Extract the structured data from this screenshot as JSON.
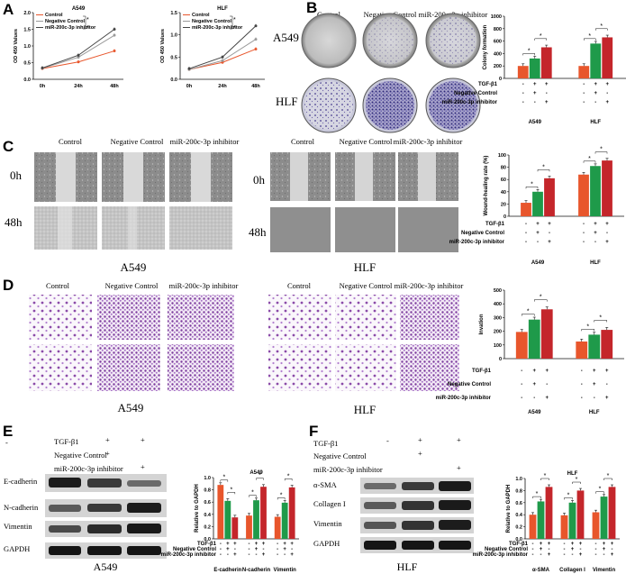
{
  "panels": {
    "A": "A",
    "B": "B",
    "C": "C",
    "D": "D",
    "E": "E",
    "F": "F"
  },
  "colors": {
    "control": "#e8562c",
    "negative_control": "#1f9a4a",
    "inhibitor": "#c4262b",
    "grey_line": "#9a9a9a"
  },
  "groups": {
    "control": "Control",
    "negative_control": "Negative Control",
    "inhibitor": "miR-200c-3p inhibitor"
  },
  "cells": {
    "a549": "A549",
    "hlf": "HLF"
  },
  "times": {
    "t0": "0h",
    "t48": "48h"
  },
  "tgf": "TGF-β1",
  "plus": "+",
  "minus": "-",
  "dash": "-",
  "chart_data": [
    {
      "id": "A-A549",
      "type": "line",
      "title": "A549",
      "x": [
        "0h",
        "24h",
        "48h"
      ],
      "ylabel": "OD 450 Values",
      "ylim": [
        0.0,
        2.0
      ],
      "yticks": [
        "0.0",
        "0.5",
        "1.0",
        "1.5",
        "2.0"
      ],
      "legend": [
        "Control",
        "Negative Control",
        "miR-200c-3p inhibitor"
      ],
      "series": [
        {
          "name": "Control",
          "values": [
            0.32,
            0.52,
            0.85
          ]
        },
        {
          "name": "Negative Control",
          "values": [
            0.33,
            0.66,
            1.32
          ]
        },
        {
          "name": "miR-200c-3p inhibitor",
          "values": [
            0.34,
            0.72,
            1.5
          ]
        }
      ]
    },
    {
      "id": "A-HLF",
      "type": "line",
      "title": "HLF",
      "x": [
        "0h",
        "24h",
        "48h"
      ],
      "ylabel": "OD 450 Values",
      "ylim": [
        0.0,
        1.5
      ],
      "yticks": [
        "0.0",
        "0.5",
        "1.0",
        "1.5"
      ],
      "legend": [
        "Control",
        "Negative Control",
        "miR-200c-3p inhibitor"
      ],
      "series": [
        {
          "name": "Control",
          "values": [
            0.22,
            0.38,
            0.68
          ]
        },
        {
          "name": "Negative Control",
          "values": [
            0.22,
            0.42,
            0.9
          ]
        },
        {
          "name": "miR-200c-3p inhibitor",
          "values": [
            0.24,
            0.5,
            1.2
          ]
        }
      ]
    },
    {
      "id": "B-colony",
      "type": "bar",
      "ylabel": "Colony formation",
      "ylim": [
        0,
        1000
      ],
      "yticks": [
        "0",
        "200",
        "400",
        "600",
        "800",
        "1000"
      ],
      "categories": [
        "A549",
        "HLF"
      ],
      "series": [
        {
          "name": "Control",
          "values": [
            200,
            200
          ]
        },
        {
          "name": "Negative Control",
          "values": [
            320,
            560
          ]
        },
        {
          "name": "miR-200c-3p inhibitor",
          "values": [
            500,
            660
          ]
        }
      ]
    },
    {
      "id": "C-wound",
      "type": "bar",
      "ylabel": "Wound-healing rate (%)",
      "ylim": [
        0,
        100
      ],
      "yticks": [
        "0",
        "20",
        "40",
        "60",
        "80",
        "100"
      ],
      "categories": [
        "A549",
        "HLF"
      ],
      "series": [
        {
          "name": "Control",
          "values": [
            22,
            68
          ]
        },
        {
          "name": "Negative Control",
          "values": [
            40,
            82
          ]
        },
        {
          "name": "miR-200c-3p inhibitor",
          "values": [
            62,
            91
          ]
        }
      ]
    },
    {
      "id": "D-invasion",
      "type": "bar",
      "ylabel": "Invation",
      "ylim": [
        0,
        500
      ],
      "yticks": [
        "0",
        "100",
        "200",
        "300",
        "400",
        "500"
      ],
      "categories": [
        "A549",
        "HLF"
      ],
      "series": [
        {
          "name": "Control",
          "values": [
            195,
            125
          ]
        },
        {
          "name": "Negative Control",
          "values": [
            285,
            175
          ]
        },
        {
          "name": "miR-200c-3p inhibitor",
          "values": [
            360,
            210
          ]
        }
      ]
    },
    {
      "id": "E-wb",
      "type": "bar",
      "title": "A549",
      "ylabel": "Relative to GAPDH",
      "ylim": [
        0.0,
        1.0
      ],
      "yticks": [
        "0.0",
        "0.2",
        "0.4",
        "0.6",
        "0.8",
        "1.0"
      ],
      "categories": [
        "E-cadherin",
        "N-cadherin",
        "Vimentin"
      ],
      "series": [
        {
          "name": "Control",
          "values": [
            0.88,
            0.38,
            0.36
          ]
        },
        {
          "name": "Negative Control",
          "values": [
            0.62,
            0.63,
            0.59
          ]
        },
        {
          "name": "miR-200c-3p inhibitor",
          "values": [
            0.35,
            0.85,
            0.84
          ]
        }
      ]
    },
    {
      "id": "F-wb",
      "type": "bar",
      "title": "HLF",
      "ylabel": "Relative to GAPDH",
      "ylim": [
        0.0,
        1.0
      ],
      "yticks": [
        "0.0",
        "0.2",
        "0.4",
        "0.6",
        "0.8",
        "1.0"
      ],
      "categories": [
        "α-SMA",
        "Collagen I",
        "Vimentin"
      ],
      "series": [
        {
          "name": "Control",
          "values": [
            0.4,
            0.39,
            0.44
          ]
        },
        {
          "name": "Negative Control",
          "values": [
            0.62,
            0.6,
            0.7
          ]
        },
        {
          "name": "miR-200c-3p inhibitor",
          "values": [
            0.86,
            0.8,
            0.86
          ]
        }
      ]
    }
  ],
  "blots": {
    "E": [
      "E-cadherin",
      "N-cadherin",
      "Vimentin",
      "GAPDH"
    ],
    "F": [
      "α-SMA",
      "Collagen I",
      "Vimentin",
      "GAPDH"
    ]
  }
}
